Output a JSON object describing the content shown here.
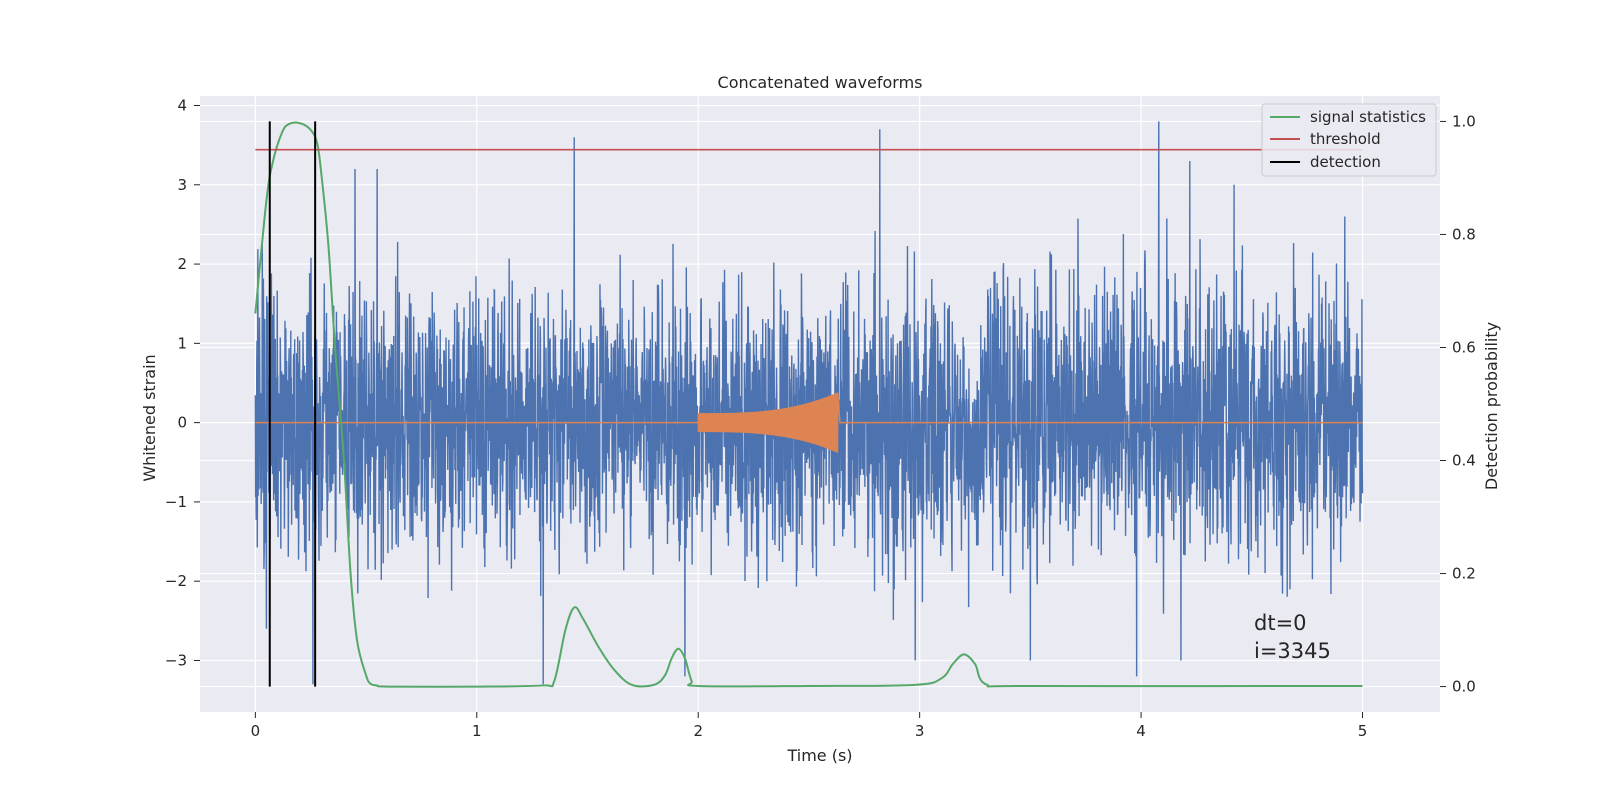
{
  "chart_data": {
    "type": "line",
    "title": "Concatenated waveforms",
    "xlabel": "Time (s)",
    "ylabel": "Whitened strain",
    "y2label": "Detection probability",
    "xlim": [
      -0.25,
      5.35
    ],
    "ylim": [
      -3.65,
      4.12
    ],
    "y2lim": [
      -0.045,
      1.045
    ],
    "xticks": [
      0,
      1,
      2,
      3,
      4,
      5
    ],
    "xtick_labels": [
      "0",
      "1",
      "2",
      "3",
      "4",
      "5"
    ],
    "yticks": [
      -3,
      -2,
      -1,
      0,
      1,
      2,
      3,
      4
    ],
    "ytick_labels": [
      "−3",
      "−2",
      "−1",
      "0",
      "1",
      "2",
      "3",
      "4"
    ],
    "y2ticks": [
      0.0,
      0.2,
      0.4,
      0.6,
      0.8,
      1.0
    ],
    "y2tick_labels": [
      "0.0",
      "0.2",
      "0.4",
      "0.6",
      "0.8",
      "1.0"
    ],
    "grid": true,
    "legend_position": "top-right",
    "annotations": [
      "dt=0",
      "i=3345"
    ],
    "series": [
      {
        "name": "",
        "axis": "left",
        "color": "#4c72b0",
        "description_values": "whitened strain noise, approx. Gaussian, spread about -2.3..2.5 with spikes",
        "x_range": [
          0,
          5
        ],
        "spikes": [
          [
            0.05,
            -2.6
          ],
          [
            0.26,
            -3.3
          ],
          [
            0.45,
            3.2
          ],
          [
            0.55,
            3.2
          ],
          [
            1.3,
            -3.3
          ],
          [
            1.44,
            3.6
          ],
          [
            1.94,
            -3.2
          ],
          [
            2.82,
            3.7
          ],
          [
            2.98,
            -3.0
          ],
          [
            3.5,
            -3.0
          ],
          [
            3.98,
            -3.2
          ],
          [
            4.08,
            3.8
          ],
          [
            4.18,
            -3.0
          ],
          [
            4.22,
            3.3
          ],
          [
            4.42,
            3.0
          ],
          [
            4.92,
            2.6
          ]
        ]
      },
      {
        "name": "",
        "axis": "left",
        "color": "#dd8452",
        "x_range": [
          0,
          5
        ],
        "burst": {
          "x_start": 2.0,
          "x_end": 2.63,
          "amp_start": 0.12,
          "amp_end": 0.38
        }
      },
      {
        "name": "signal statistics",
        "axis": "right",
        "color": "#55a868",
        "x": [
          0,
          0.05,
          0.08,
          0.12,
          0.15,
          0.2,
          0.25,
          0.28,
          0.3,
          0.33,
          0.36,
          0.4,
          0.43,
          0.46,
          0.5,
          0.52,
          0.55,
          0.6,
          1.0,
          1.3,
          1.35,
          1.4,
          1.44,
          1.48,
          1.55,
          1.62,
          1.7,
          1.8,
          1.85,
          1.88,
          1.91,
          1.94,
          1.97,
          2.0,
          2.5,
          2.98,
          3.1,
          3.15,
          3.2,
          3.25,
          3.3,
          3.5,
          5.0
        ],
        "values": [
          0.66,
          0.86,
          0.93,
          0.98,
          0.995,
          0.997,
          0.985,
          0.96,
          0.9,
          0.78,
          0.6,
          0.4,
          0.2,
          0.08,
          0.02,
          0.005,
          0.002,
          0.0,
          0.0,
          0.002,
          0.01,
          0.1,
          0.14,
          0.12,
          0.07,
          0.03,
          0.003,
          0.003,
          0.02,
          0.05,
          0.067,
          0.05,
          0.01,
          0.001,
          0.001,
          0.003,
          0.015,
          0.04,
          0.057,
          0.04,
          0.004,
          0.001,
          0.001
        ]
      },
      {
        "name": "threshold",
        "axis": "right",
        "color": "#c44e52",
        "x": [
          0,
          5
        ],
        "values": [
          0.95,
          0.95
        ]
      },
      {
        "name": "detection",
        "axis": "right",
        "color": "#000000",
        "vlines": [
          0.065,
          0.27
        ],
        "ymin": 0.0,
        "ymax": 1.0
      }
    ]
  }
}
